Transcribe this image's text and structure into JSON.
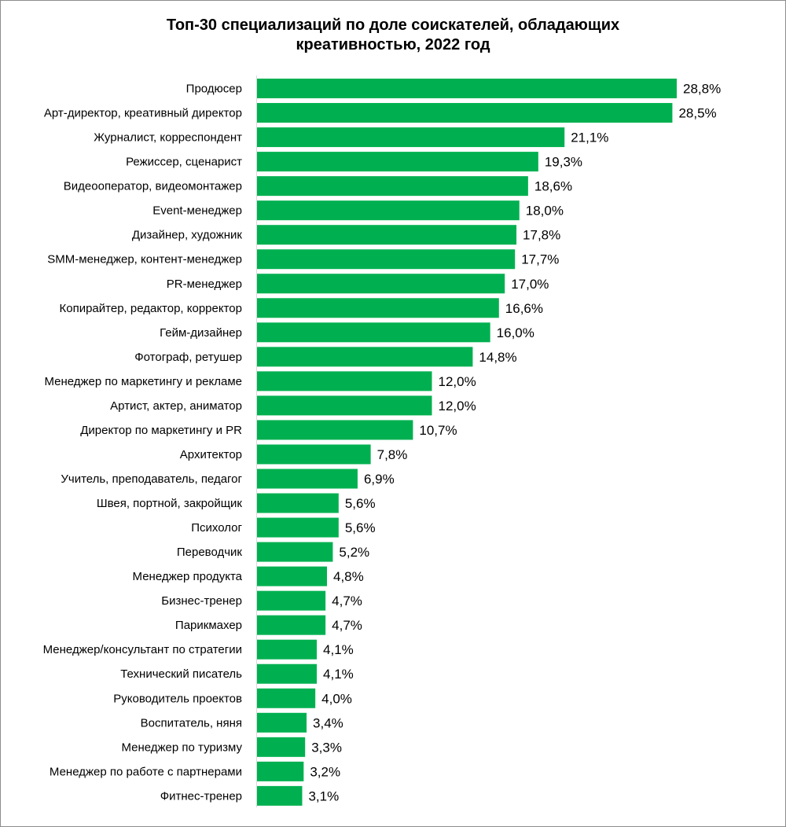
{
  "chart_data": {
    "type": "bar",
    "orientation": "horizontal",
    "title": "Топ-30 специализаций по доле соискателей, обладающих креативностью, 2022 год",
    "title_lines": [
      "Топ-30 специализаций по доле соискателей, обладающих",
      "креативностью, 2022 год"
    ],
    "xlabel": "",
    "ylabel": "",
    "xlim": [
      0,
      28.8
    ],
    "grid": false,
    "legend": "none",
    "bar_color": "#00b050",
    "categories": [
      "Продюсер",
      "Арт-директор, креативный директор",
      "Журналист, корреспондент",
      "Режиссер, сценарист",
      "Видеооператор, видеомонтажер",
      "Event-менеджер",
      "Дизайнер, художник",
      "SMM-менеджер, контент-менеджер",
      "PR-менеджер",
      "Копирайтер, редактор, корректор",
      "Гейм-дизайнер",
      "Фотограф, ретушер",
      "Менеджер по маркетингу и рекламе",
      "Артист, актер, аниматор",
      "Директор по маркетингу и PR",
      "Архитектор",
      "Учитель, преподаватель, педагог",
      "Швея, портной, закройщик",
      "Психолог",
      "Переводчик",
      "Менеджер продукта",
      "Бизнес-тренер",
      "Парикмахер",
      "Менеджер/консультант по стратегии",
      "Технический писатель",
      "Руководитель проектов",
      "Воспитатель, няня",
      "Менеджер по туризму",
      "Менеджер по работе с партнерами",
      "Фитнес-тренер"
    ],
    "values": [
      28.8,
      28.5,
      21.1,
      19.3,
      18.6,
      18.0,
      17.8,
      17.7,
      17.0,
      16.6,
      16.0,
      14.8,
      12.0,
      12.0,
      10.7,
      7.8,
      6.9,
      5.6,
      5.6,
      5.2,
      4.8,
      4.7,
      4.7,
      4.1,
      4.1,
      4.0,
      3.4,
      3.3,
      3.2,
      3.1
    ],
    "value_labels": [
      "28,8%",
      "28,5%",
      "21,1%",
      "19,3%",
      "18,6%",
      "18,0%",
      "17,8%",
      "17,7%",
      "17,0%",
      "16,6%",
      "16,0%",
      "14,8%",
      "12,0%",
      "12,0%",
      "10,7%",
      "7,8%",
      "6,9%",
      "5,6%",
      "5,6%",
      "5,2%",
      "4,8%",
      "4,7%",
      "4,7%",
      "4,1%",
      "4,1%",
      "4,0%",
      "3,4%",
      "3,3%",
      "3,2%",
      "3,1%"
    ]
  }
}
